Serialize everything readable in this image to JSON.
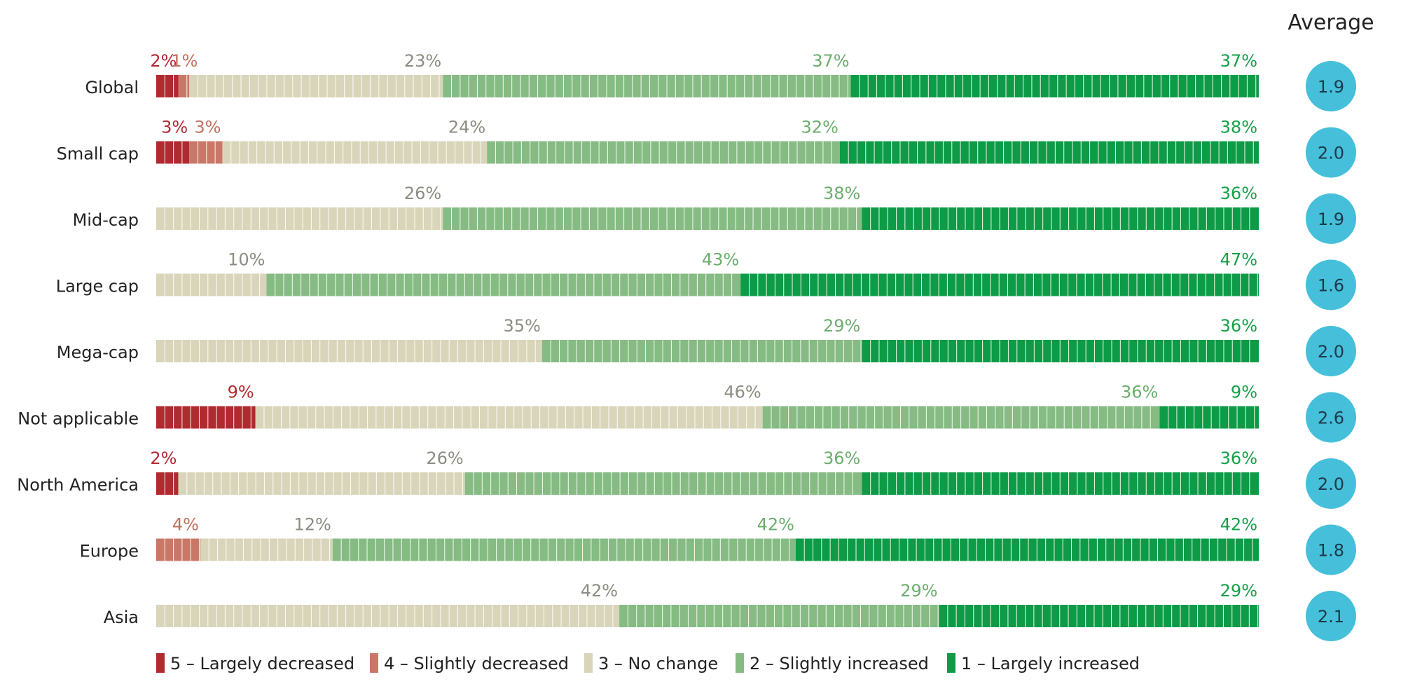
{
  "chart_data": {
    "type": "bar",
    "stacked": true,
    "orientation": "horizontal",
    "categories": [
      "Global",
      "Small cap",
      "Mid-cap",
      "Large cap",
      "Mega-cap",
      "Not applicable",
      "North America",
      "Europe",
      "Asia"
    ],
    "series": [
      {
        "name": "5 – Largely decreased",
        "color": "#B02A30",
        "values": [
          2,
          3,
          0,
          0,
          0,
          9,
          2,
          0,
          0
        ],
        "labels": [
          "2%",
          "3%",
          "",
          "",
          "",
          "9%",
          "2%",
          "",
          ""
        ]
      },
      {
        "name": "4 – Slightly decreased",
        "color": "#C97868",
        "values": [
          1,
          3,
          0,
          0,
          0,
          0,
          0,
          4,
          0
        ],
        "labels": [
          "1%",
          "3%",
          "",
          "",
          "",
          "",
          "",
          "4%",
          ""
        ]
      },
      {
        "name": "3 – No change",
        "color": "#D9D5BA",
        "values": [
          23,
          24,
          26,
          10,
          35,
          46,
          26,
          12,
          42
        ],
        "labels": [
          "23%",
          "24%",
          "26%",
          "10%",
          "35%",
          "46%",
          "26%",
          "12%",
          "42%"
        ]
      },
      {
        "name": "2 – Slightly increased",
        "color": "#86BB84",
        "values": [
          37,
          32,
          38,
          43,
          29,
          36,
          36,
          42,
          29
        ],
        "labels": [
          "37%",
          "32%",
          "38%",
          "43%",
          "29%",
          "36%",
          "36%",
          "42%",
          "29%"
        ]
      },
      {
        "name": "1 – Largely increased",
        "color": "#0E9B47",
        "values": [
          37,
          38,
          36,
          47,
          36,
          9,
          36,
          42,
          29
        ],
        "labels": [
          "37%",
          "38%",
          "36%",
          "47%",
          "36%",
          "9%",
          "36%",
          "42%",
          "29%"
        ]
      }
    ],
    "average_header": "Average",
    "averages": [
      "1.9",
      "2.0",
      "1.9",
      "1.6",
      "2.0",
      "2.6",
      "2.0",
      "1.8",
      "2.1"
    ],
    "average_color": "#45BFDA",
    "label_colors": {
      "5": "#B02A30",
      "4": "#C0705E",
      "3": "#8C8C82",
      "2": "#6BAE6D",
      "1": "#14A048"
    },
    "legend_position": "bottom",
    "xlim": [
      0,
      100
    ]
  }
}
